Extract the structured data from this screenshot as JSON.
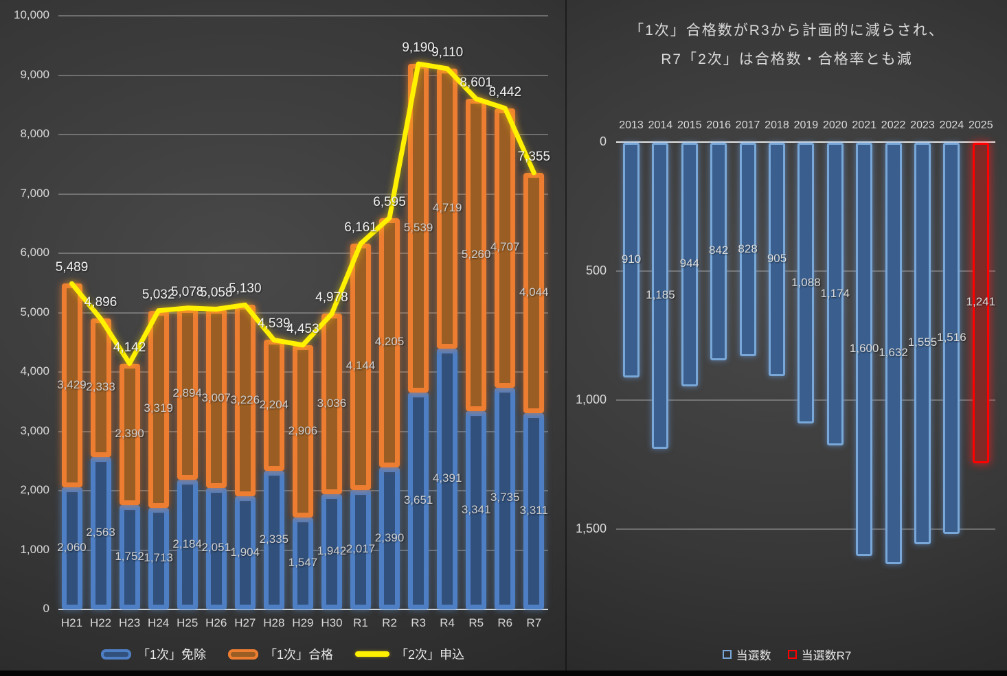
{
  "theme": {
    "background": "#3a3a3a",
    "grid_color": "#c8c8c8",
    "axis_line_color": "#dcdcdc",
    "text_color": "#d9d9d9",
    "data_label_color": "#cfcfcf",
    "total_label_color": "#f2f2f2"
  },
  "chart_data": [
    {
      "type": "bar",
      "subtype": "stacked-bars-with-line",
      "title": "",
      "categories": [
        "H21",
        "H22",
        "H23",
        "H24",
        "H25",
        "H26",
        "H27",
        "H28",
        "H29",
        "H30",
        "R1",
        "R2",
        "R3",
        "R4",
        "R5",
        "R6",
        "R7"
      ],
      "series": [
        {
          "name": "「1次」免除",
          "type": "bar",
          "color": "#4e7fc4",
          "fill": "#31507c",
          "values": [
            2060,
            2563,
            1752,
            1713,
            2184,
            2051,
            1904,
            2335,
            1547,
            1942,
            2017,
            2390,
            3651,
            4391,
            3341,
            3735,
            3311
          ]
        },
        {
          "name": "「1次」合格",
          "type": "bar",
          "color": "#ed7d31",
          "fill": "#9a5e24",
          "values": [
            3429,
            2333,
            2390,
            3319,
            2894,
            3007,
            3226,
            2204,
            2906,
            3036,
            4144,
            4205,
            5539,
            4719,
            5260,
            4707,
            4044
          ]
        },
        {
          "name": "「2次」申込",
          "type": "line",
          "color": "#fff100",
          "values": [
            5489,
            4896,
            4142,
            5032,
            5078,
            5058,
            5130,
            4539,
            4453,
            4978,
            6161,
            6595,
            9190,
            9110,
            8601,
            8442,
            7355
          ]
        }
      ],
      "ylabel": "",
      "xlabel": "",
      "ylim": [
        0,
        10000
      ],
      "y_ticks": [
        "0",
        "1,000",
        "2,000",
        "3,000",
        "4,000",
        "5,000",
        "6,000",
        "7,000",
        "8,000",
        "9,000",
        "10,000"
      ],
      "grid": true,
      "legend_position": "bottom"
    },
    {
      "type": "bar",
      "subtype": "inverted-axis-bars",
      "title": "「1次」合格数がR3から計画的に減らされ、R7「2次」は合格数・合格率とも減",
      "title_lines": [
        "「1次」合格数がR3から計画的に減らされ、",
        "R7「2次」は合格数・合格率とも減"
      ],
      "categories": [
        "2013",
        "2014",
        "2015",
        "2016",
        "2017",
        "2018",
        "2019",
        "2020",
        "2021",
        "2022",
        "2023",
        "2024",
        "2025"
      ],
      "series": [
        {
          "name": "当選数",
          "type": "bar",
          "color": "#79a8d8",
          "fill": "#3a5f8e",
          "values": [
            910,
            1185,
            944,
            842,
            828,
            905,
            1088,
            1174,
            1600,
            1632,
            1555,
            1516,
            null
          ]
        },
        {
          "name": "当選数R7",
          "type": "bar",
          "color": "#ff0000",
          "fill": "#7e2b28",
          "values": [
            null,
            null,
            null,
            null,
            null,
            null,
            null,
            null,
            null,
            null,
            null,
            null,
            1241
          ]
        }
      ],
      "ylabel": "",
      "xlabel": "",
      "axis_inverted": true,
      "ylim": [
        0,
        2000
      ],
      "y_ticks": [
        "0",
        "500",
        "1,000",
        "1,500"
      ],
      "grid": true,
      "legend_position": "bottom"
    }
  ]
}
